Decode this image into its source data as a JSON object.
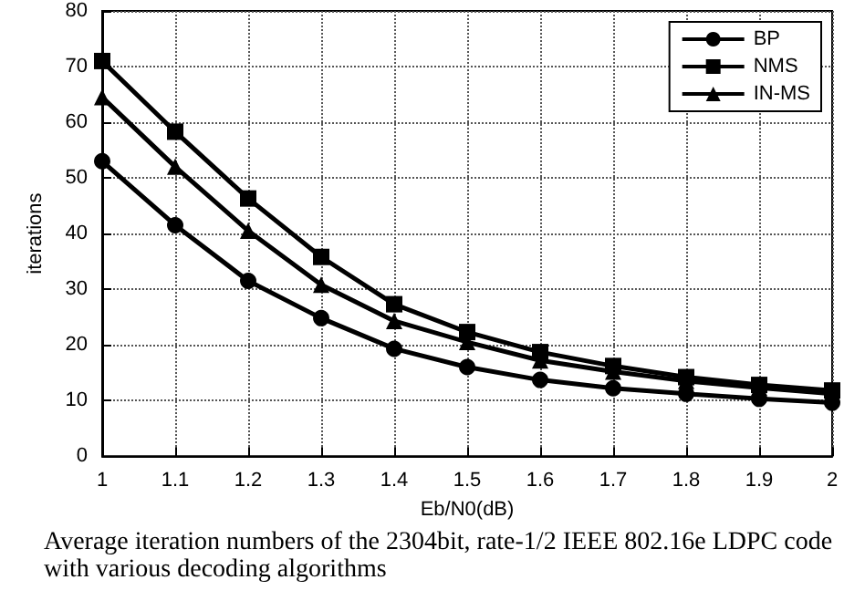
{
  "chart_data": {
    "type": "line",
    "xlabel": "Eb/N0(dB)",
    "ylabel": "iterations",
    "annotations": [
      "Average iteration numbers of the 2304bit, rate-1/2 IEEE 802.16e LDPC code with various decoding algorithms"
    ],
    "x": [
      1,
      1.1,
      1.2,
      1.3,
      1.4,
      1.5,
      1.6,
      1.7,
      1.8,
      1.9,
      2
    ],
    "series": [
      {
        "name": "BP",
        "color": "#000000",
        "marker": "circle",
        "values": [
          53,
          41.5,
          31.5,
          24.8,
          19.3,
          16,
          13.7,
          12.2,
          11.2,
          10.3,
          9.6
        ]
      },
      {
        "name": "NMS",
        "color": "#000000",
        "marker": "square",
        "values": [
          71,
          58.3,
          46.3,
          35.8,
          27.3,
          22.3,
          18.7,
          16.2,
          14.2,
          12.8,
          11.8
        ]
      },
      {
        "name": "IN-MS",
        "color": "#000000",
        "marker": "triangle",
        "values": [
          64.5,
          52,
          40.5,
          30.8,
          24.3,
          20.5,
          17.2,
          15.2,
          13.5,
          12.3,
          11.2
        ]
      }
    ],
    "xlim": [
      1,
      2
    ],
    "xticks": [
      1,
      1.1,
      1.2,
      1.3,
      1.4,
      1.5,
      1.6,
      1.7,
      1.8,
      1.9,
      2
    ],
    "ylim": [
      0,
      80
    ],
    "yticks": [
      0,
      10,
      20,
      30,
      40,
      50,
      60,
      70,
      80
    ],
    "grid": true,
    "legend": "top right",
    "line_style": "solid"
  }
}
